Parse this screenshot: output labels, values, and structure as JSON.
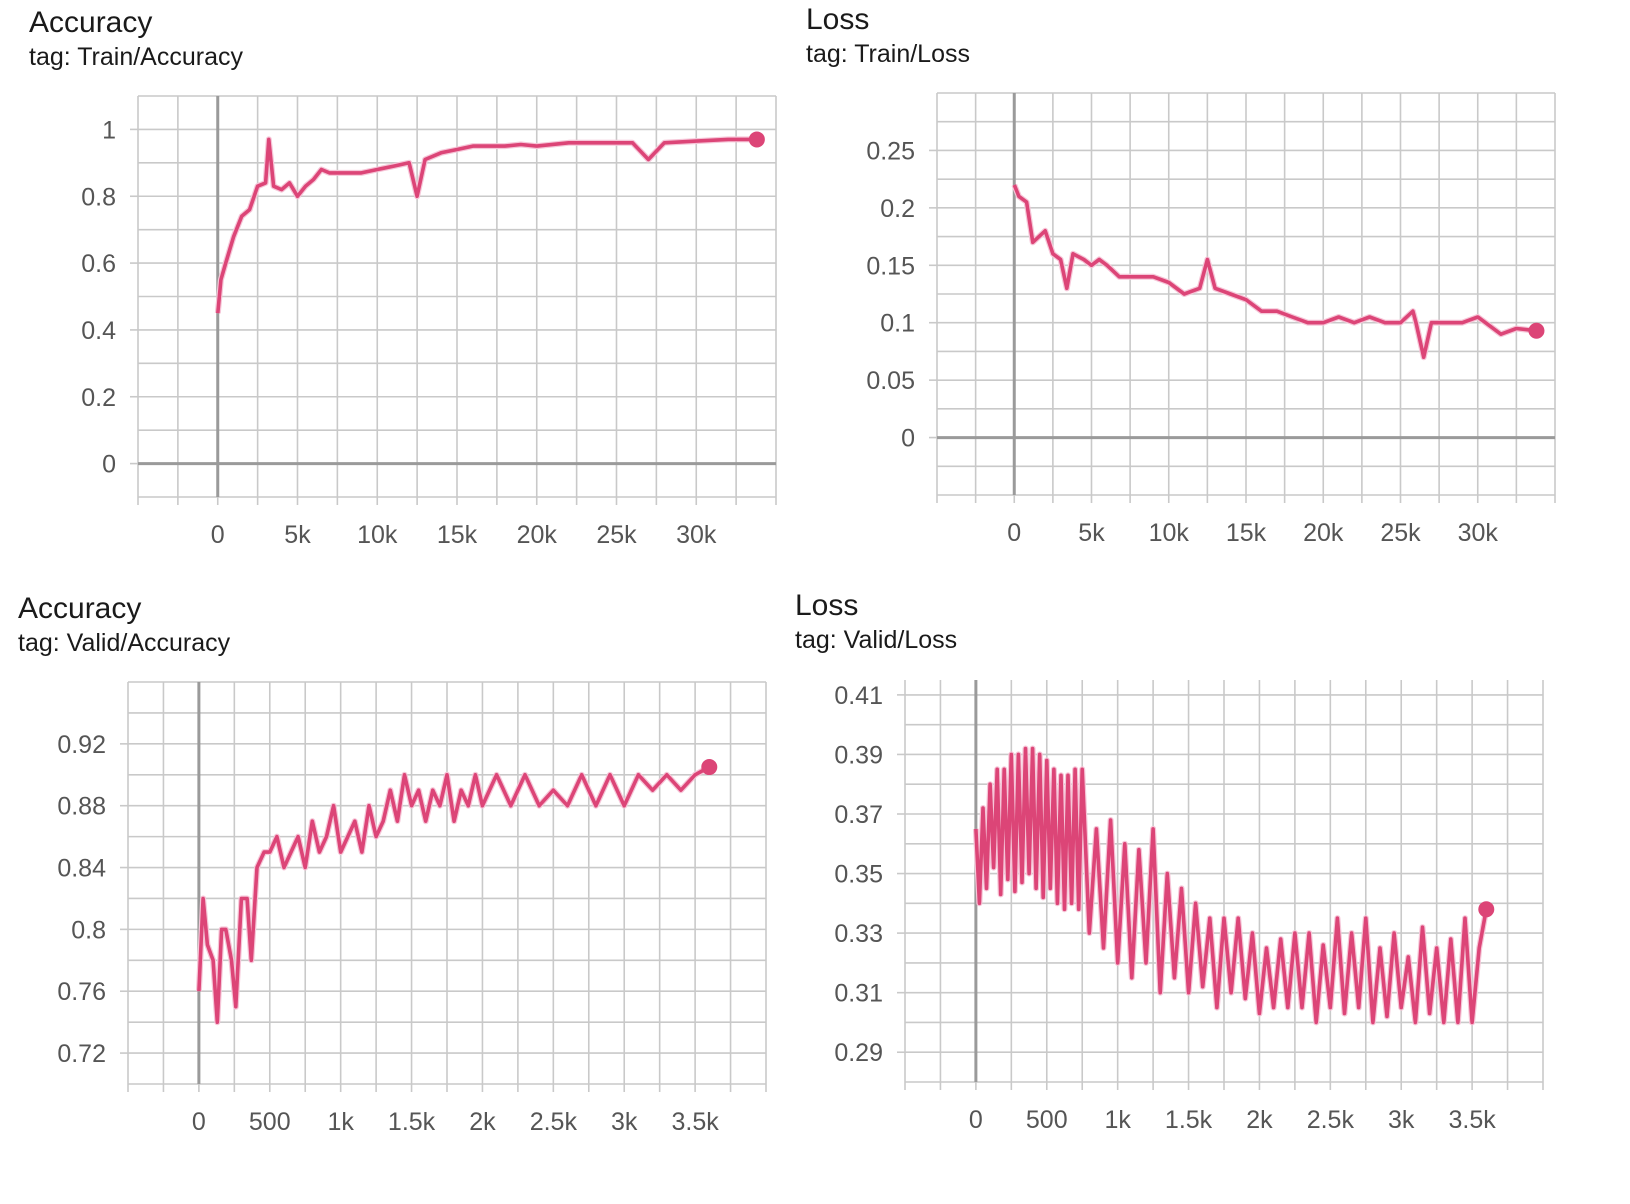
{
  "panels": [
    {
      "id": "train-accuracy",
      "title": "Accuracy",
      "tag": "tag: Train/Accuracy"
    },
    {
      "id": "train-loss",
      "title": "Loss",
      "tag": "tag: Train/Loss"
    },
    {
      "id": "valid-accuracy",
      "title": "Accuracy",
      "tag": "tag: Valid/Accuracy"
    },
    {
      "id": "valid-loss",
      "title": "Loss",
      "tag": "tag: Valid/Loss"
    }
  ],
  "colors": {
    "series": "#dc4577",
    "raw": "#f6c6d8",
    "grid": "#c9c9c9",
    "axis": "#9a9a9a",
    "tick_text": "#555555"
  },
  "chart_data": [
    {
      "type": "line",
      "title": "Accuracy",
      "subtitle": "tag: Train/Accuracy",
      "xlim": [
        -5000,
        35000
      ],
      "ylim": [
        -0.1,
        1.1
      ],
      "xticks": [
        0,
        5000,
        10000,
        15000,
        20000,
        25000,
        30000
      ],
      "xtick_labels": [
        "0",
        "5k",
        "10k",
        "15k",
        "20k",
        "25k",
        "30k"
      ],
      "yticks": [
        0,
        0.2,
        0.4,
        0.6,
        0.8,
        1
      ],
      "ytick_labels": [
        "0",
        "0.2",
        "0.4",
        "0.6",
        "0.8",
        "1"
      ],
      "grid": true,
      "x": [
        0,
        200,
        500,
        1000,
        1500,
        2000,
        2500,
        3000,
        3200,
        3500,
        4000,
        4500,
        5000,
        5500,
        6000,
        6500,
        7000,
        8000,
        9000,
        10000,
        11000,
        12000,
        12500,
        13000,
        14000,
        15000,
        16000,
        17000,
        18000,
        19000,
        20000,
        22000,
        24000,
        26000,
        27000,
        28000,
        30000,
        32000,
        33800
      ],
      "y": [
        0.45,
        0.55,
        0.6,
        0.68,
        0.74,
        0.76,
        0.83,
        0.84,
        0.97,
        0.83,
        0.82,
        0.84,
        0.8,
        0.83,
        0.85,
        0.88,
        0.87,
        0.87,
        0.87,
        0.88,
        0.89,
        0.9,
        0.8,
        0.91,
        0.93,
        0.94,
        0.95,
        0.95,
        0.95,
        0.955,
        0.95,
        0.96,
        0.96,
        0.96,
        0.91,
        0.96,
        0.965,
        0.97,
        0.97
      ]
    },
    {
      "type": "line",
      "title": "Loss",
      "subtitle": "tag: Train/Loss",
      "xlim": [
        -5000,
        35000
      ],
      "ylim": [
        -0.05,
        0.3
      ],
      "xticks": [
        0,
        5000,
        10000,
        15000,
        20000,
        25000,
        30000
      ],
      "xtick_labels": [
        "0",
        "5k",
        "10k",
        "15k",
        "20k",
        "25k",
        "30k"
      ],
      "yticks": [
        0,
        0.05,
        0.1,
        0.15,
        0.2,
        0.25
      ],
      "ytick_labels": [
        "0",
        "0.05",
        "0.1",
        "0.15",
        "0.2",
        "0.25"
      ],
      "grid": true,
      "x": [
        0,
        300,
        800,
        1200,
        2000,
        2500,
        3000,
        3400,
        3800,
        4500,
        5000,
        5500,
        6000,
        6800,
        7500,
        8000,
        9000,
        10000,
        11000,
        12000,
        12500,
        13000,
        14000,
        15000,
        16000,
        17000,
        18000,
        19000,
        20000,
        21000,
        22000,
        23000,
        24000,
        25000,
        25800,
        26000,
        26500,
        27000,
        28000,
        29000,
        30000,
        30500,
        31500,
        32500,
        33800
      ],
      "y": [
        0.22,
        0.21,
        0.205,
        0.17,
        0.18,
        0.16,
        0.155,
        0.13,
        0.16,
        0.155,
        0.15,
        0.155,
        0.15,
        0.14,
        0.14,
        0.14,
        0.14,
        0.135,
        0.125,
        0.13,
        0.155,
        0.13,
        0.125,
        0.12,
        0.11,
        0.11,
        0.105,
        0.1,
        0.1,
        0.105,
        0.1,
        0.105,
        0.1,
        0.1,
        0.11,
        0.1,
        0.07,
        0.1,
        0.1,
        0.1,
        0.105,
        0.1,
        0.09,
        0.095,
        0.093
      ]
    },
    {
      "type": "line",
      "title": "Accuracy",
      "subtitle": "tag: Valid/Accuracy",
      "xlim": [
        -500,
        4000
      ],
      "ylim": [
        0.7,
        0.96
      ],
      "xticks": [
        0,
        500,
        1000,
        1500,
        2000,
        2500,
        3000,
        3500
      ],
      "xtick_labels": [
        "0",
        "500",
        "1k",
        "1.5k",
        "2k",
        "2.5k",
        "3k",
        "3.5k"
      ],
      "yticks": [
        0.72,
        0.76,
        0.8,
        0.84,
        0.88,
        0.92
      ],
      "ytick_labels": [
        "0.72",
        "0.76",
        "0.8",
        "0.84",
        "0.88",
        "0.92"
      ],
      "grid": true,
      "x": [
        0,
        30,
        60,
        100,
        130,
        160,
        190,
        230,
        260,
        300,
        340,
        370,
        410,
        460,
        500,
        550,
        600,
        650,
        700,
        750,
        800,
        850,
        900,
        950,
        1000,
        1050,
        1100,
        1150,
        1200,
        1250,
        1300,
        1350,
        1400,
        1450,
        1500,
        1550,
        1600,
        1650,
        1700,
        1750,
        1800,
        1850,
        1900,
        1950,
        2000,
        2100,
        2200,
        2300,
        2400,
        2500,
        2600,
        2700,
        2800,
        2900,
        3000,
        3100,
        3200,
        3300,
        3400,
        3500,
        3600
      ],
      "y": [
        0.76,
        0.82,
        0.79,
        0.78,
        0.74,
        0.8,
        0.8,
        0.78,
        0.75,
        0.82,
        0.82,
        0.78,
        0.84,
        0.85,
        0.85,
        0.86,
        0.84,
        0.85,
        0.86,
        0.84,
        0.87,
        0.85,
        0.86,
        0.88,
        0.85,
        0.86,
        0.87,
        0.85,
        0.88,
        0.86,
        0.87,
        0.89,
        0.87,
        0.9,
        0.88,
        0.89,
        0.87,
        0.89,
        0.88,
        0.9,
        0.87,
        0.89,
        0.88,
        0.9,
        0.88,
        0.9,
        0.88,
        0.9,
        0.88,
        0.89,
        0.88,
        0.9,
        0.88,
        0.9,
        0.88,
        0.9,
        0.89,
        0.9,
        0.89,
        0.9,
        0.905
      ]
    },
    {
      "type": "line",
      "title": "Loss",
      "subtitle": "tag: Valid/Loss",
      "xlim": [
        -500,
        4000
      ],
      "ylim": [
        0.28,
        0.415
      ],
      "xticks": [
        0,
        500,
        1000,
        1500,
        2000,
        2500,
        3000,
        3500
      ],
      "xtick_labels": [
        "0",
        "500",
        "1k",
        "1.5k",
        "2k",
        "2.5k",
        "3k",
        "3.5k"
      ],
      "yticks": [
        0.29,
        0.31,
        0.33,
        0.35,
        0.37,
        0.39,
        0.41
      ],
      "ytick_labels": [
        "0.29",
        "0.31",
        "0.33",
        "0.35",
        "0.37",
        "0.39",
        "0.41"
      ],
      "grid": true,
      "x": [
        0,
        25,
        50,
        75,
        100,
        125,
        150,
        175,
        200,
        225,
        250,
        275,
        300,
        325,
        350,
        375,
        400,
        425,
        450,
        475,
        500,
        525,
        550,
        575,
        600,
        625,
        650,
        675,
        700,
        725,
        750,
        800,
        850,
        900,
        950,
        1000,
        1050,
        1100,
        1150,
        1200,
        1250,
        1300,
        1350,
        1400,
        1450,
        1500,
        1550,
        1600,
        1650,
        1700,
        1750,
        1800,
        1850,
        1900,
        1950,
        2000,
        2050,
        2100,
        2150,
        2200,
        2250,
        2300,
        2350,
        2400,
        2450,
        2500,
        2550,
        2600,
        2650,
        2700,
        2750,
        2800,
        2850,
        2900,
        2950,
        3000,
        3050,
        3100,
        3150,
        3200,
        3250,
        3300,
        3350,
        3400,
        3450,
        3500,
        3550,
        3600
      ],
      "y": [
        0.365,
        0.34,
        0.372,
        0.345,
        0.38,
        0.352,
        0.385,
        0.343,
        0.385,
        0.348,
        0.39,
        0.344,
        0.39,
        0.347,
        0.392,
        0.35,
        0.392,
        0.345,
        0.39,
        0.342,
        0.388,
        0.345,
        0.385,
        0.34,
        0.383,
        0.338,
        0.383,
        0.34,
        0.385,
        0.338,
        0.385,
        0.33,
        0.365,
        0.325,
        0.368,
        0.32,
        0.36,
        0.315,
        0.358,
        0.32,
        0.365,
        0.31,
        0.35,
        0.315,
        0.345,
        0.31,
        0.34,
        0.312,
        0.335,
        0.305,
        0.335,
        0.31,
        0.335,
        0.308,
        0.33,
        0.303,
        0.325,
        0.305,
        0.328,
        0.305,
        0.33,
        0.305,
        0.33,
        0.3,
        0.326,
        0.305,
        0.335,
        0.303,
        0.33,
        0.305,
        0.335,
        0.3,
        0.325,
        0.302,
        0.33,
        0.305,
        0.322,
        0.3,
        0.332,
        0.303,
        0.325,
        0.3,
        0.328,
        0.3,
        0.335,
        0.3,
        0.325,
        0.338
      ]
    }
  ]
}
